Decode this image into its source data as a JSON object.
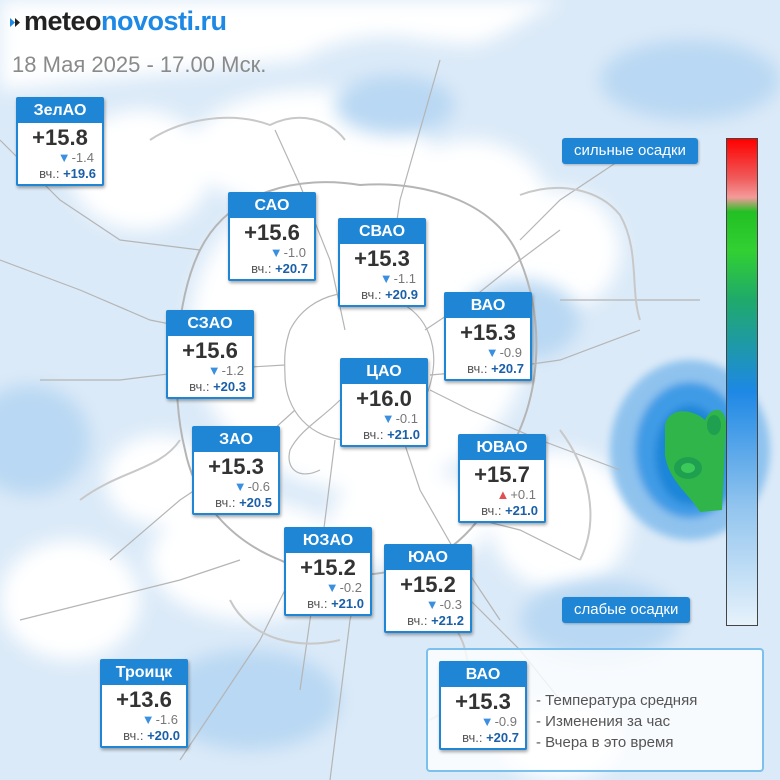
{
  "header": {
    "brand_part1": "meteo",
    "brand_part2": "novosti.ru",
    "datetime": "18 Мая 2025 - 17.00 Мск."
  },
  "colors": {
    "accent": "#1f86d6",
    "brand_dark": "#222222",
    "brand_blue": "#1e88e5",
    "change_down": "#3b8fe0",
    "change_up": "#e05050",
    "precip_strong": "#1faa3a",
    "precip_light": "#e6f2fb"
  },
  "districts": [
    {
      "name": "ЗелАО",
      "temp": "+15.8",
      "direction": "down",
      "change": "-1.4",
      "yesterday_label": "вч.:",
      "yesterday": "+19.6"
    },
    {
      "name": "САО",
      "temp": "+15.6",
      "direction": "down",
      "change": "-1.0",
      "yesterday_label": "вч.:",
      "yesterday": "+20.7"
    },
    {
      "name": "СВАО",
      "temp": "+15.3",
      "direction": "down",
      "change": "-1.1",
      "yesterday_label": "вч.:",
      "yesterday": "+20.9"
    },
    {
      "name": "ВАО",
      "temp": "+15.3",
      "direction": "down",
      "change": "-0.9",
      "yesterday_label": "вч.:",
      "yesterday": "+20.7"
    },
    {
      "name": "СЗАО",
      "temp": "+15.6",
      "direction": "down",
      "change": "-1.2",
      "yesterday_label": "вч.:",
      "yesterday": "+20.3"
    },
    {
      "name": "ЦАО",
      "temp": "+16.0",
      "direction": "down",
      "change": "-0.1",
      "yesterday_label": "вч.:",
      "yesterday": "+21.0"
    },
    {
      "name": "ЗАО",
      "temp": "+15.3",
      "direction": "down",
      "change": "-0.6",
      "yesterday_label": "вч.:",
      "yesterday": "+20.5"
    },
    {
      "name": "ЮВАО",
      "temp": "+15.7",
      "direction": "up",
      "change": "+0.1",
      "yesterday_label": "вч.:",
      "yesterday": "+21.0"
    },
    {
      "name": "ЮЗАО",
      "temp": "+15.2",
      "direction": "down",
      "change": "-0.2",
      "yesterday_label": "вч.:",
      "yesterday": "+21.0"
    },
    {
      "name": "ЮАО",
      "temp": "+15.2",
      "direction": "down",
      "change": "-0.3",
      "yesterday_label": "вч.:",
      "yesterday": "+21.2"
    },
    {
      "name": "Троицк",
      "temp": "+13.6",
      "direction": "down",
      "change": "-1.6",
      "yesterday_label": "вч.:",
      "yesterday": "+20.0"
    }
  ],
  "legend": {
    "strong_label": "сильные осадки",
    "weak_label": "слабые осадки"
  },
  "key": {
    "example": {
      "name": "ВАО",
      "temp": "+15.3",
      "direction": "down",
      "change": "-0.9",
      "yesterday_label": "вч.:",
      "yesterday": "+20.7"
    },
    "lines": [
      "- Температура средняя",
      "- Изменения за час",
      "- Вчера в это время"
    ]
  }
}
